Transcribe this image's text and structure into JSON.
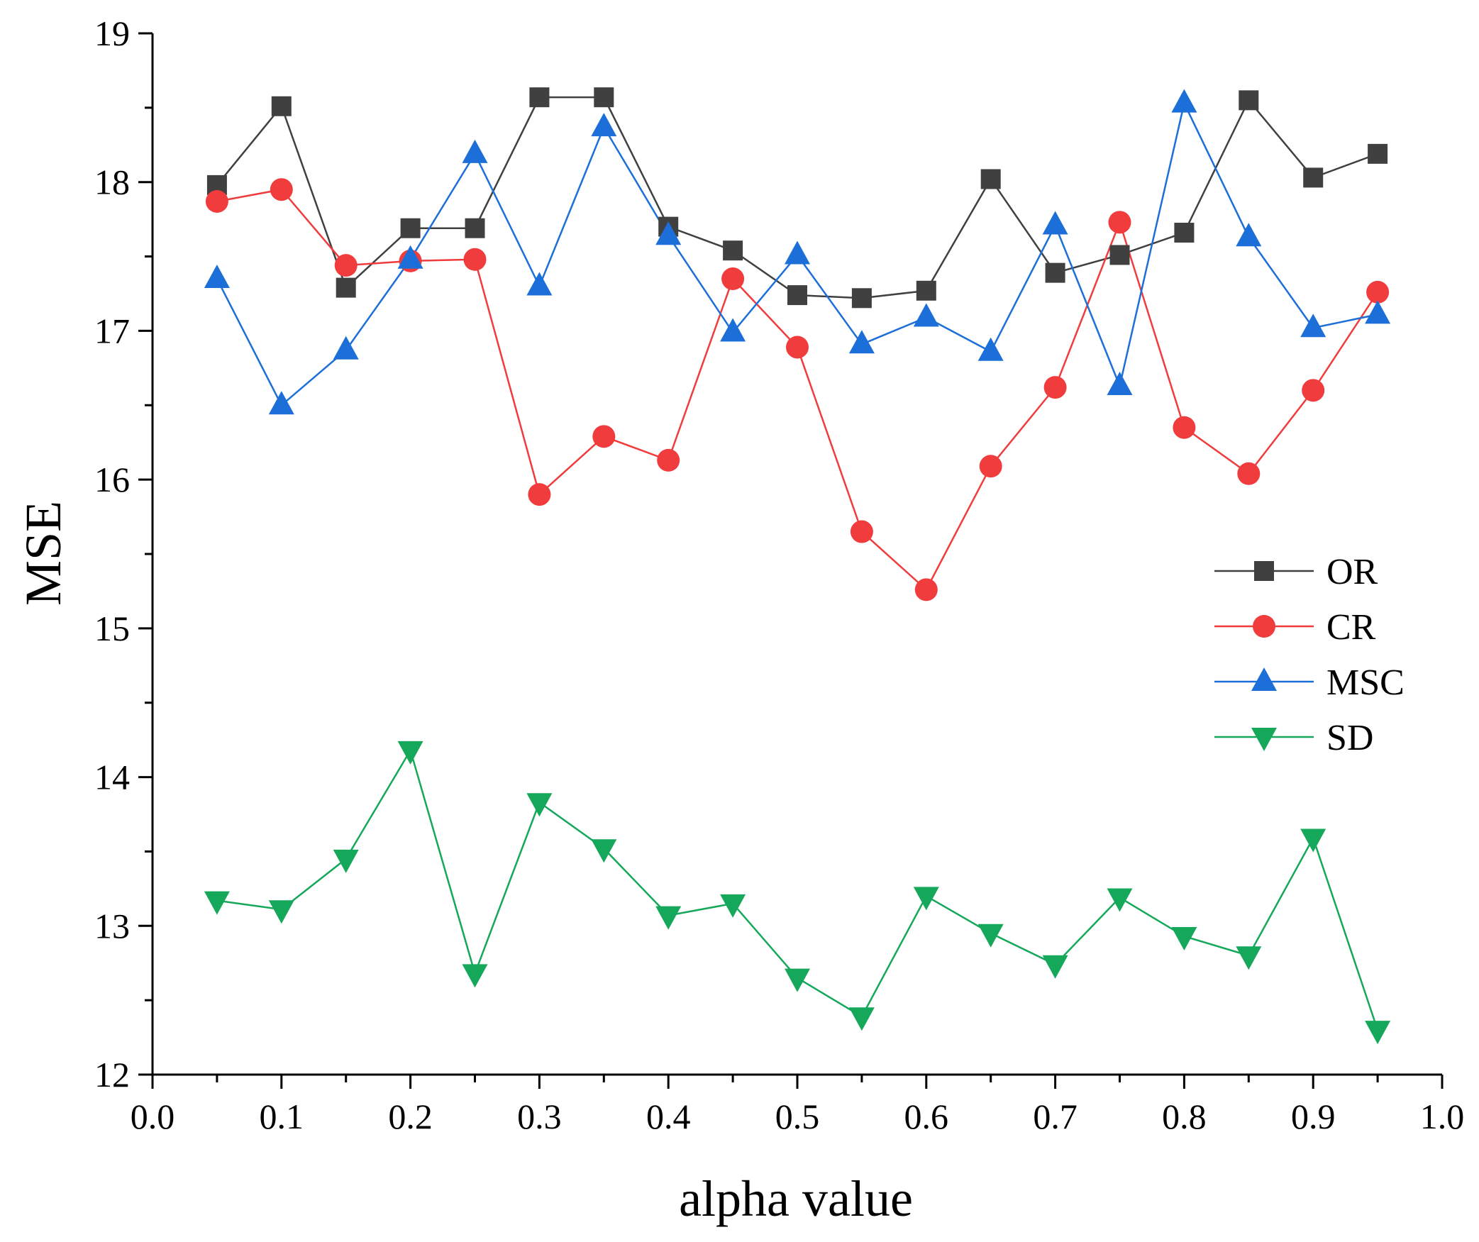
{
  "chart_data": {
    "type": "line",
    "xlabel": "alpha value",
    "ylabel": "MSE",
    "xlim": [
      0.0,
      1.0
    ],
    "ylim": [
      12,
      19
    ],
    "xticks": [
      "0.0",
      "0.1",
      "0.2",
      "0.3",
      "0.4",
      "0.5",
      "0.6",
      "0.7",
      "0.8",
      "0.9",
      "1.0"
    ],
    "yticks": [
      "12",
      "13",
      "14",
      "15",
      "16",
      "17",
      "18",
      "19"
    ],
    "grid": false,
    "legend_position": "right",
    "x": [
      0.05,
      0.1,
      0.15,
      0.2,
      0.25,
      0.3,
      0.35,
      0.4,
      0.45,
      0.5,
      0.55,
      0.6,
      0.65,
      0.7,
      0.75,
      0.8,
      0.85,
      0.9,
      0.95
    ],
    "series": [
      {
        "name": "OR",
        "color": "#404040",
        "marker": "square",
        "values": [
          17.98,
          18.51,
          17.29,
          17.69,
          17.69,
          18.57,
          18.57,
          17.7,
          17.54,
          17.24,
          17.22,
          17.27,
          18.02,
          17.39,
          17.51,
          17.66,
          18.55,
          18.03,
          18.19
        ]
      },
      {
        "name": "CR",
        "color": "#f03c3c",
        "marker": "circle",
        "values": [
          17.87,
          17.95,
          17.44,
          17.47,
          17.48,
          15.9,
          16.29,
          16.13,
          17.35,
          16.89,
          15.65,
          15.26,
          16.09,
          16.62,
          17.73,
          16.35,
          16.04,
          16.6,
          17.26
        ]
      },
      {
        "name": "MSC",
        "color": "#1c6fd8",
        "marker": "triangle-up",
        "values": [
          17.35,
          16.5,
          16.87,
          17.48,
          18.19,
          17.3,
          18.37,
          17.64,
          16.99,
          17.51,
          16.91,
          17.09,
          16.86,
          17.71,
          16.63,
          18.53,
          17.63,
          17.02,
          17.11
        ]
      },
      {
        "name": "SD",
        "color": "#15a85a",
        "marker": "triangle-down",
        "values": [
          13.17,
          13.11,
          13.45,
          14.18,
          12.68,
          13.83,
          13.52,
          13.07,
          13.15,
          12.65,
          12.39,
          13.2,
          12.95,
          12.74,
          13.19,
          12.93,
          12.8,
          13.59,
          12.3
        ]
      }
    ]
  }
}
